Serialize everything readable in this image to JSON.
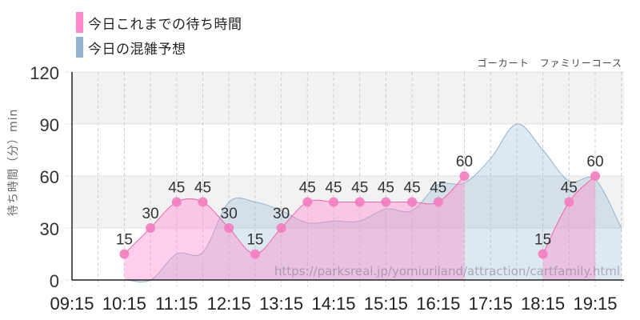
{
  "legend": [
    {
      "label": "今日これまでの待ち時間",
      "color": "#ff88cc"
    },
    {
      "label": "今日の混雑予想",
      "color": "#93b4d0"
    }
  ],
  "subtitle": "ゴーカート　ファミリーコース",
  "watermark": "https://parksreal.jp/yomiuriland/attraction/cartfamily.html",
  "chart_data": {
    "type": "area",
    "title": "ゴーカート　ファミリーコース",
    "xlabel": "",
    "ylabel": "待ち時間（分）min",
    "ylim": [
      0,
      120
    ],
    "yticks": [
      0,
      30,
      60,
      90,
      120
    ],
    "xticks": [
      "09:15",
      "10:15",
      "11:15",
      "12:15",
      "13:15",
      "14:15",
      "15:15",
      "16:15",
      "17:15",
      "18:15",
      "19:15"
    ],
    "x": [
      "09:15",
      "09:45",
      "10:15",
      "10:45",
      "11:15",
      "11:45",
      "12:15",
      "12:45",
      "13:15",
      "13:45",
      "14:15",
      "14:45",
      "15:15",
      "15:45",
      "16:15",
      "16:45",
      "17:15",
      "17:45",
      "18:15",
      "18:45",
      "19:15",
      "19:45"
    ],
    "grid": true,
    "legend_position": "top-left",
    "series": [
      {
        "name": "今日これまでの待ち時間",
        "color": "#ff88cc",
        "values": [
          null,
          null,
          15,
          30,
          45,
          45,
          30,
          15,
          30,
          45,
          45,
          45,
          45,
          45,
          45,
          60,
          null,
          null,
          15,
          45,
          60,
          null
        ],
        "labels": true
      },
      {
        "name": "今日の混雑予想",
        "color": "#93b4d0",
        "values": [
          0,
          0,
          0,
          0,
          15,
          16,
          45,
          45,
          40,
          33,
          34,
          34,
          41,
          40,
          55,
          56,
          70,
          90,
          75,
          57,
          58,
          30
        ]
      }
    ]
  }
}
